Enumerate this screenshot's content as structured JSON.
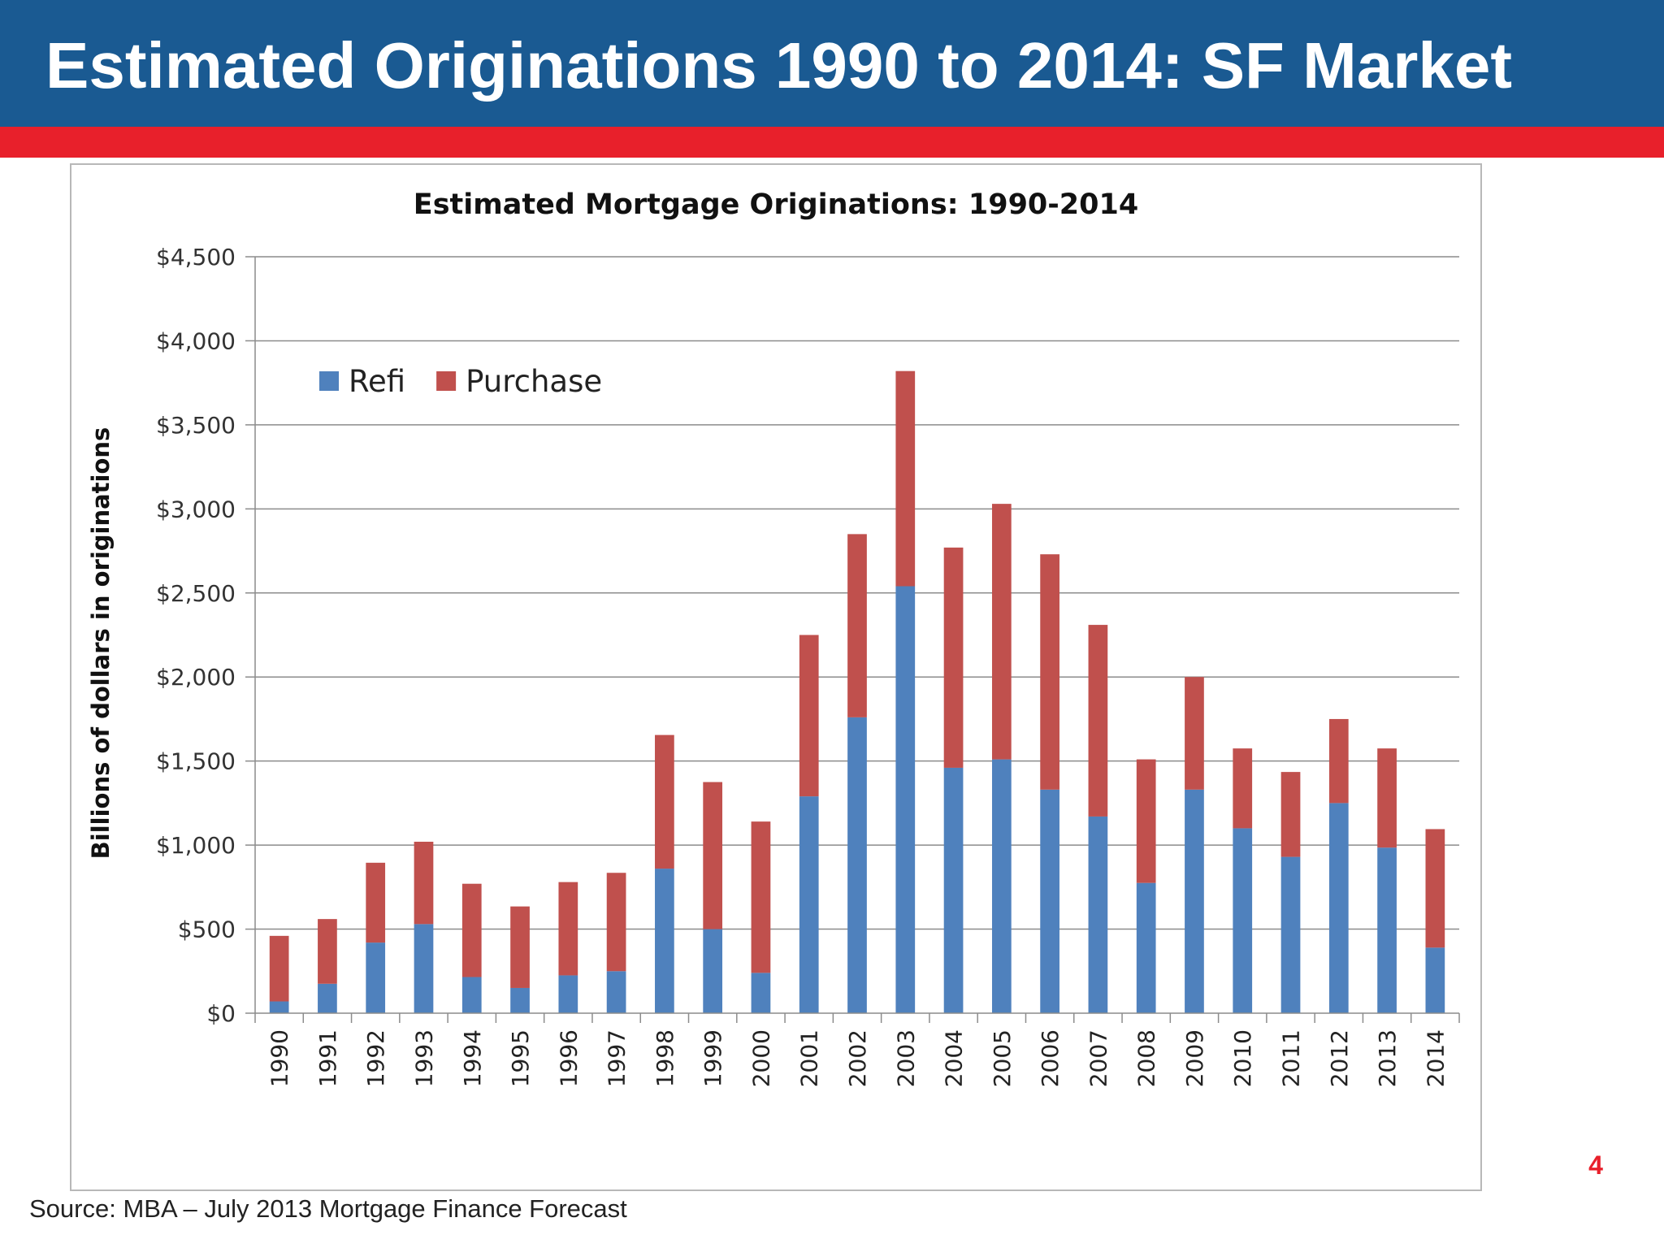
{
  "slide": {
    "title": "Estimated Originations 1990 to 2014: SF Market",
    "source": "Source: MBA – July 2013 Mortgage Finance Forecast",
    "page_number": "4",
    "colors": {
      "header": "#1a5a92",
      "accent": "#e8202b"
    }
  },
  "chart_data": {
    "type": "bar",
    "stacked": true,
    "title": "Estimated Mortgage Originations: 1990-2014",
    "xlabel": "",
    "ylabel": "Billions of dollars in originations",
    "ylim": [
      0,
      4500
    ],
    "y_ticks": [
      0,
      500,
      1000,
      1500,
      2000,
      2500,
      3000,
      3500,
      4000,
      4500
    ],
    "y_tick_labels": [
      "$0",
      "$500",
      "$1,000",
      "$1,500",
      "$2,000",
      "$2,500",
      "$3,000",
      "$3,500",
      "$4,000",
      "$4,500"
    ],
    "grid": true,
    "legend_position": "top-left",
    "categories": [
      "1990",
      "1991",
      "1992",
      "1993",
      "1994",
      "1995",
      "1996",
      "1997",
      "1998",
      "1999",
      "2000",
      "2001",
      "2002",
      "2003",
      "2004",
      "2005",
      "2006",
      "2007",
      "2008",
      "2009",
      "2010",
      "2011",
      "2012",
      "2013",
      "2014"
    ],
    "series": [
      {
        "name": "Refi",
        "color": "#4f81bd",
        "values": [
          70,
          175,
          420,
          530,
          215,
          150,
          225,
          250,
          860,
          500,
          240,
          1290,
          1760,
          2540,
          1460,
          1510,
          1330,
          1170,
          775,
          1330,
          1100,
          930,
          1250,
          985,
          390
        ]
      },
      {
        "name": "Purchase",
        "color": "#c0504d",
        "values": [
          390,
          385,
          475,
          490,
          555,
          485,
          555,
          585,
          795,
          875,
          900,
          960,
          1090,
          1280,
          1310,
          1520,
          1400,
          1140,
          735,
          670,
          475,
          505,
          500,
          590,
          705
        ]
      }
    ]
  }
}
